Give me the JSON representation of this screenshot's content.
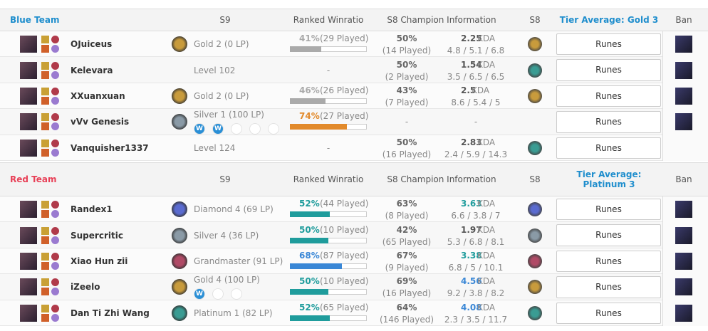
{
  "kda_label": "KDA",
  "runes_label": "Runes",
  "teams": [
    {
      "name": "Blue Team",
      "color": "#1f8ecd",
      "header": {
        "s9": "S9",
        "winratio": "Ranked Winratio",
        "s8info": "S8 Champion Information",
        "s8": "S8",
        "tier": "Tier Average: Gold 3",
        "ban": "Ban"
      },
      "players": [
        {
          "name": "OJuiceus",
          "s9": "Gold 2 (0 LP)",
          "winrate": 41,
          "winrate_label": "41%",
          "played": "(29 Played)",
          "color": "#aaaaaa",
          "s8": {
            "winrate": "50%",
            "played": "(14 Played)",
            "kda": 2.25,
            "kda_color": "#555555",
            "kda_detail": "4.8 / 5.1 / 6.8"
          },
          "ban": true
        },
        {
          "name": "Kelevara",
          "s9": "Level 102",
          "winratio": "-",
          "s8": {
            "winrate": "50%",
            "played": "(2 Played)",
            "kda": 1.54,
            "kda_color": "#555555",
            "kda_detail": "3.5 / 6.5 / 6.5"
          },
          "ban": true
        },
        {
          "name": "XXuanxuan",
          "s9": "Gold 2 (0 LP)",
          "winrate": 46,
          "winrate_label": "46%",
          "played": "(26 Played)",
          "color": "#aaaaaa",
          "s8": {
            "winrate": "43%",
            "played": "(7 Played)",
            "kda": 2.5,
            "kda_color": "#555555",
            "kda_detail": "8.6 / 5.4 / 5"
          },
          "ban": true
        },
        {
          "name": "vVv Genesis",
          "s9": "Silver 1 (100 LP)",
          "promos": [
            "W",
            "W",
            null,
            null,
            null
          ],
          "winrate": 74,
          "winrate_label": "74%",
          "played": "(27 Played)",
          "color": "#e28a2b",
          "s8": {
            "winrate": "-",
            "kda": "-"
          },
          "ban": true
        },
        {
          "name": "Vanquisher1337",
          "s9": "Level 124",
          "winratio": "-",
          "s8": {
            "winrate": "50%",
            "played": "(16 Played)",
            "kda": 2.83,
            "kda_color": "#555555",
            "kda_detail": "2.4 / 5.9 / 14.3"
          },
          "ban": false
        }
      ]
    },
    {
      "name": "Red Team",
      "color": "#e84057",
      "header": {
        "s9": "S9",
        "winratio": "Ranked Winratio",
        "s8info": "S8 Champion Information",
        "s8": "S8",
        "tier": "Tier Average: Platinum 3",
        "ban": "Ban"
      },
      "players": [
        {
          "name": "Randex1",
          "s9": "Diamond 4 (69 LP)",
          "winrate": 52,
          "winrate_label": "52%",
          "played": "(44 Played)",
          "color": "#1f9c9c",
          "s8": {
            "winrate": "63%",
            "played": "(8 Played)",
            "kda": 3.63,
            "kda_color": "#1f9c9c",
            "kda_detail": "6.6 / 3.8 / 7"
          },
          "ban": true
        },
        {
          "name": "Supercritic",
          "s9": "Silver 4 (36 LP)",
          "winrate": 50,
          "winrate_label": "50%",
          "played": "(10 Played)",
          "color": "#1f9c9c",
          "s8": {
            "winrate": "42%",
            "played": "(65 Played)",
            "kda": 1.97,
            "kda_color": "#555555",
            "kda_detail": "5.3 / 6.8 / 8.1"
          },
          "ban": true
        },
        {
          "name": "Xiao Hun zii",
          "s9": "Grandmaster (91 LP)",
          "winrate": 68,
          "winrate_label": "68%",
          "played": "(87 Played)",
          "color": "#3a87d6",
          "s8": {
            "winrate": "67%",
            "played": "(9 Played)",
            "kda": 3.38,
            "kda_color": "#1f9c9c",
            "kda_detail": "6.8 / 5 / 10.1"
          },
          "ban": true
        },
        {
          "name": "iZeelo",
          "s9": "Gold 4 (100 LP)",
          "promos": [
            "W",
            null,
            null
          ],
          "winrate": 50,
          "winrate_label": "50%",
          "played": "(10 Played)",
          "color": "#1f9c9c",
          "s8": {
            "winrate": "69%",
            "played": "(16 Played)",
            "kda": 4.56,
            "kda_color": "#3a87d6",
            "kda_detail": "9.2 / 3.8 / 8.2"
          },
          "ban": true
        },
        {
          "name": "Dan Ti Zhi Wang",
          "s9": "Platinum 1 (82 LP)",
          "winrate": 52,
          "winrate_label": "52%",
          "played": "(65 Played)",
          "color": "#1f9c9c",
          "s8": {
            "winrate": "64%",
            "played": "(146 Played)",
            "kda": 4.08,
            "kda_color": "#3a87d6",
            "kda_detail": "2.3 / 3.5 / 11.7"
          },
          "ban": true
        }
      ]
    }
  ]
}
